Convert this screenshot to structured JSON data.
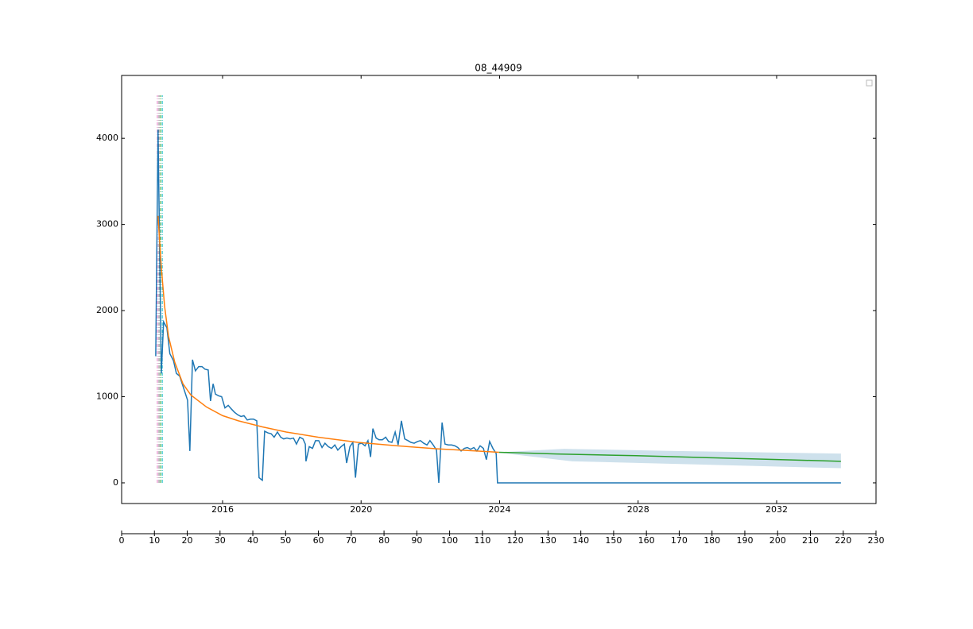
{
  "chart_data": {
    "type": "line",
    "title": "08_44909",
    "xlim": [
      0,
      230
    ],
    "xticks": [
      0,
      10,
      20,
      30,
      40,
      50,
      60,
      70,
      80,
      90,
      100,
      110,
      120,
      130,
      140,
      150,
      160,
      170,
      180,
      190,
      200,
      210,
      220,
      230
    ],
    "ylim": [
      -240,
      4730
    ],
    "yticks": [
      0,
      1000,
      2000,
      3000,
      4000
    ],
    "date_axis": {
      "xlim": [
        2013.085,
        2034.87
      ],
      "xticks": [
        2016,
        2020,
        2024,
        2028,
        2032
      ]
    },
    "series": [
      {
        "color": "#1f77b4",
        "x": [
          10.4,
          11.1,
          12.1,
          12.8,
          13.8,
          14.7,
          15.8,
          16.7,
          17.7,
          18.9,
          20.1,
          20.8,
          21.6,
          22.5,
          23.5,
          24.5,
          25.4,
          26.4,
          27.1,
          27.9,
          28.6,
          29.6,
          30.5,
          31.5,
          32.5,
          33.4,
          34.4,
          35.4,
          36.4,
          37.3,
          38.3,
          39.3,
          40.2,
          41.2,
          41.9,
          42.9,
          43.6,
          44.6,
          45.6,
          46.5,
          47.5,
          48.5,
          49.4,
          50.4,
          51.4,
          52.4,
          53.3,
          54.3,
          55.3,
          56.0,
          56.2,
          57.2,
          58.2,
          59.1,
          60.1,
          61.1,
          62.0,
          63.0,
          64.0,
          65.0,
          65.9,
          66.9,
          67.9,
          68.6,
          69.6,
          70.5,
          71.3,
          72.2,
          73.2,
          74.2,
          75.1,
          75.9,
          76.6,
          77.6,
          78.5,
          79.5,
          80.5,
          81.4,
          82.4,
          83.4,
          84.3,
          85.3,
          86.3,
          87.3,
          88.2,
          89.2,
          90.2,
          91.1,
          92.1,
          93.1,
          94.0,
          95.0,
          96.0,
          96.7,
          97.7,
          98.6,
          99.6,
          100.6,
          101.6,
          102.5,
          103.5,
          104.5,
          105.4,
          106.4,
          107.4,
          108.3,
          109.3,
          110.3,
          111.2,
          112.2,
          113.2,
          114.2,
          114.6,
          219.3
        ],
        "values": [
          1470,
          4100,
          1270,
          1870,
          1800,
          1500,
          1420,
          1270,
          1240,
          1100,
          960,
          370,
          1430,
          1300,
          1350,
          1350,
          1320,
          1310,
          950,
          1150,
          1030,
          1010,
          1000,
          870,
          900,
          860,
          820,
          790,
          770,
          780,
          730,
          740,
          740,
          720,
          60,
          30,
          600,
          580,
          570,
          530,
          590,
          530,
          510,
          520,
          510,
          520,
          450,
          530,
          510,
          450,
          250,
          420,
          400,
          490,
          490,
          410,
          460,
          420,
          400,
          440,
          380,
          420,
          450,
          230,
          420,
          470,
          60,
          450,
          460,
          430,
          490,
          300,
          630,
          520,
          500,
          500,
          530,
          480,
          470,
          590,
          440,
          720,
          510,
          490,
          470,
          460,
          480,
          490,
          460,
          440,
          490,
          440,
          380,
          0,
          700,
          450,
          440,
          440,
          430,
          410,
          370,
          400,
          410,
          390,
          410,
          370,
          430,
          400,
          270,
          480,
          400,
          340,
          0,
          0
        ]
      },
      {
        "color": "#ff7f0e",
        "x": [
          11.1,
          12.1,
          13.1,
          14.3,
          16.2,
          18.7,
          21.1,
          25.9,
          30.8,
          35.6,
          42.9,
          50.2,
          59.9,
          72.0,
          84.1,
          96.2,
          108.3,
          115.1
        ],
        "values": [
          3100,
          2500,
          2050,
          1700,
          1400,
          1150,
          1020,
          880,
          780,
          720,
          650,
          590,
          530,
          470,
          430,
          395,
          370,
          355
        ]
      },
      {
        "color": "#2ca02c",
        "x": [
          115.1,
          132.6,
          156.8,
          181.0,
          205.3,
          219.3
        ],
        "values": [
          355,
          335,
          315,
          290,
          265,
          250
        ]
      }
    ],
    "band": {
      "color": "#9ec3da",
      "x": [
        115.1,
        135,
        137.4,
        169,
        219.3
      ],
      "lower": [
        350,
        260,
        250,
        220,
        170
      ],
      "upper": [
        355,
        395,
        393,
        370,
        340
      ]
    },
    "vlines": {
      "x": [
        10.9,
        11.4,
        11.9,
        12.4
      ],
      "colors": [
        "#e377c2",
        "#7f7f7f",
        "#2ca02c",
        "#17becf"
      ],
      "ymin": 0,
      "ymax": 4500
    }
  }
}
